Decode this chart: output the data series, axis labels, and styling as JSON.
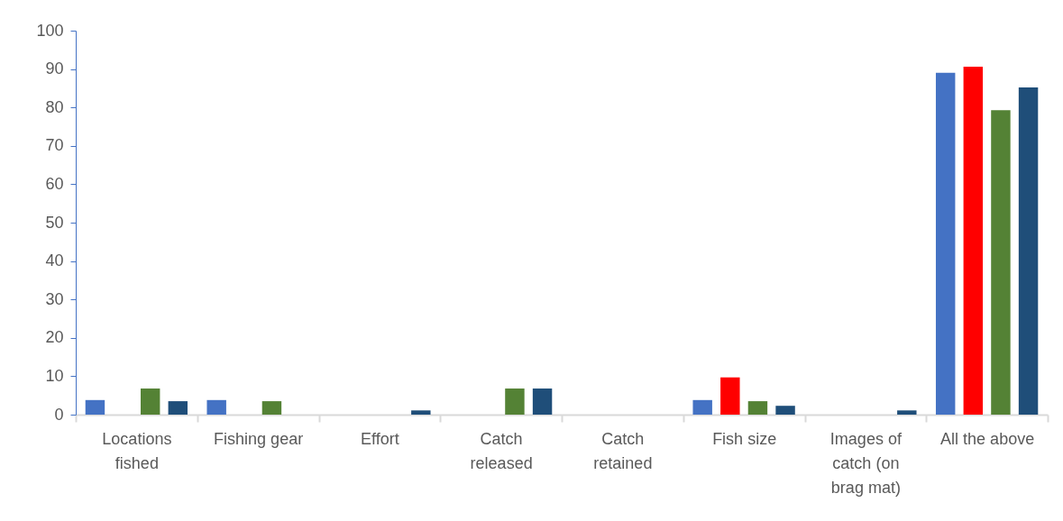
{
  "chart_data": {
    "type": "bar",
    "categories": [
      "Locations fished",
      "Fishing gear",
      "Effort",
      "Catch released",
      "Catch retained",
      "Fish size",
      "Images of catch (on brag mat)",
      "All the above"
    ],
    "series": [
      {
        "color": "#4472c4",
        "values": [
          3.8,
          3.8,
          null,
          null,
          null,
          3.8,
          null,
          89
        ]
      },
      {
        "color": "#ff0000",
        "values": [
          null,
          null,
          null,
          null,
          null,
          9.7,
          null,
          90.6
        ]
      },
      {
        "color": "#548235",
        "values": [
          6.8,
          3.5,
          null,
          6.8,
          null,
          3.5,
          null,
          79.3
        ]
      },
      {
        "color": "#1f4e79",
        "values": [
          3.5,
          null,
          1.1,
          6.8,
          null,
          2.3,
          1.1,
          85.2
        ]
      }
    ],
    "ylim": [
      0,
      100
    ],
    "yticks": [
      0,
      10,
      20,
      30,
      40,
      50,
      60,
      70,
      80,
      90,
      100
    ],
    "grid": false,
    "legend": false
  }
}
